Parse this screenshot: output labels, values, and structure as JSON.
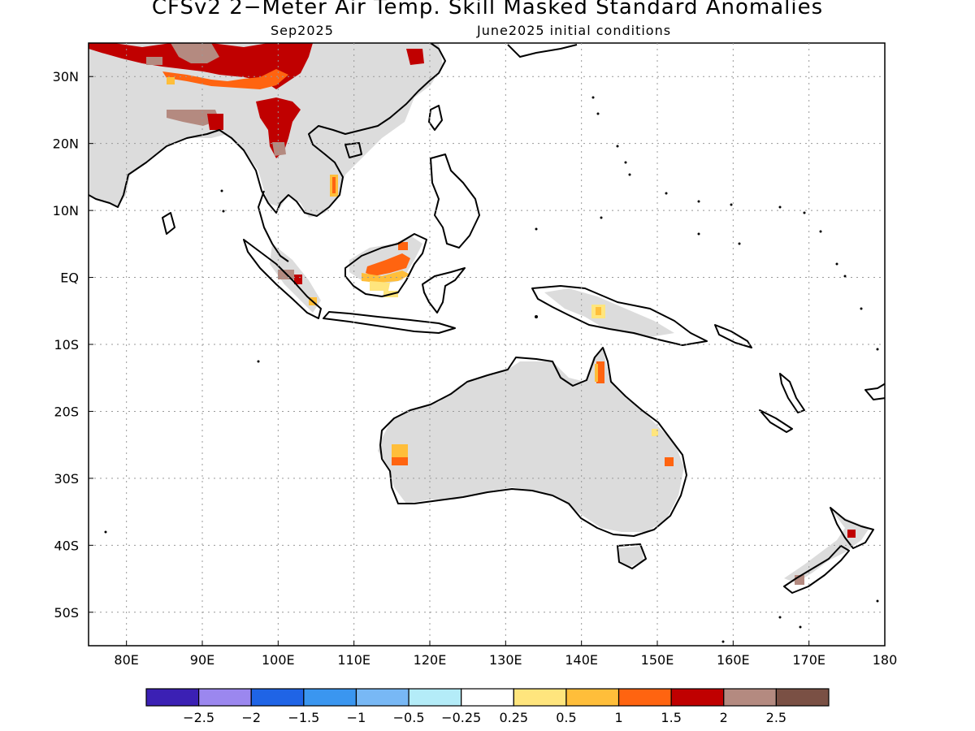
{
  "title": "CFSv2 2−Meter Air Temp. Skill Masked Standard Anomalies",
  "subtitle_month": "Sep2025",
  "subtitle_init": "June2025 initial conditions",
  "map": {
    "lon_range": [
      75,
      180
    ],
    "lat_range": [
      -55,
      35
    ],
    "lon_ticks": [
      {
        "value": 80,
        "label": "80E"
      },
      {
        "value": 90,
        "label": "90E"
      },
      {
        "value": 100,
        "label": "100E"
      },
      {
        "value": 110,
        "label": "110E"
      },
      {
        "value": 120,
        "label": "120E"
      },
      {
        "value": 130,
        "label": "130E"
      },
      {
        "value": 140,
        "label": "140E"
      },
      {
        "value": 150,
        "label": "150E"
      },
      {
        "value": 160,
        "label": "160E"
      },
      {
        "value": 170,
        "label": "170E"
      },
      {
        "value": 180,
        "label": "180"
      }
    ],
    "lat_ticks": [
      {
        "value": 30,
        "label": "30N"
      },
      {
        "value": 20,
        "label": "20N"
      },
      {
        "value": 10,
        "label": "10N"
      },
      {
        "value": 0,
        "label": "EQ"
      },
      {
        "value": -10,
        "label": "10S"
      },
      {
        "value": -20,
        "label": "20S"
      },
      {
        "value": -30,
        "label": "30S"
      },
      {
        "value": -40,
        "label": "40S"
      },
      {
        "value": -50,
        "label": "50S"
      }
    ],
    "grid": "dotted",
    "masked_land_color": "#dcdcdc",
    "land_outline_color": "#000000"
  },
  "colorbar": {
    "colors": [
      "#3b20b4",
      "#9b87ef",
      "#1f64e6",
      "#3a96f0",
      "#78b8f5",
      "#b4ecf8",
      "#ffffff",
      "#ffe57d",
      "#ffbe3a",
      "#ff6410",
      "#c00000",
      "#b48a80",
      "#7a5044"
    ],
    "labels": [
      "−2.5",
      "−2",
      "−1.5",
      "−1",
      "−0.5",
      "−0.25",
      "0.25",
      "0.5",
      "1",
      "1.5",
      "2",
      "2.5"
    ]
  },
  "anomaly_regions": [
    {
      "name": "tibet-south-asia-north",
      "class": 11,
      "color": "#c00000"
    },
    {
      "name": "yunnan-myanmar",
      "class": 11,
      "color": "#c00000"
    },
    {
      "name": "sichuan",
      "class": 12,
      "color": "#b48a80"
    },
    {
      "name": "east-china",
      "class": 11,
      "color": "#c00000"
    },
    {
      "name": "vietnam-coast",
      "class": 9,
      "color": "#ffbe3a"
    },
    {
      "name": "sumatra",
      "class": 12,
      "color": "#b48a80"
    },
    {
      "name": "borneo",
      "class": 10,
      "color": "#ff6410"
    },
    {
      "name": "new-guinea",
      "class": 8,
      "color": "#ffe57d"
    },
    {
      "name": "cape-york",
      "class": 10,
      "color": "#ff6410"
    },
    {
      "name": "western-australia",
      "class": 9,
      "color": "#ffbe3a"
    },
    {
      "name": "queensland-coast",
      "class": 10,
      "color": "#ff6410"
    },
    {
      "name": "new-zealand-north",
      "class": 11,
      "color": "#c00000"
    },
    {
      "name": "new-zealand-south",
      "class": 12,
      "color": "#b48a80"
    }
  ]
}
